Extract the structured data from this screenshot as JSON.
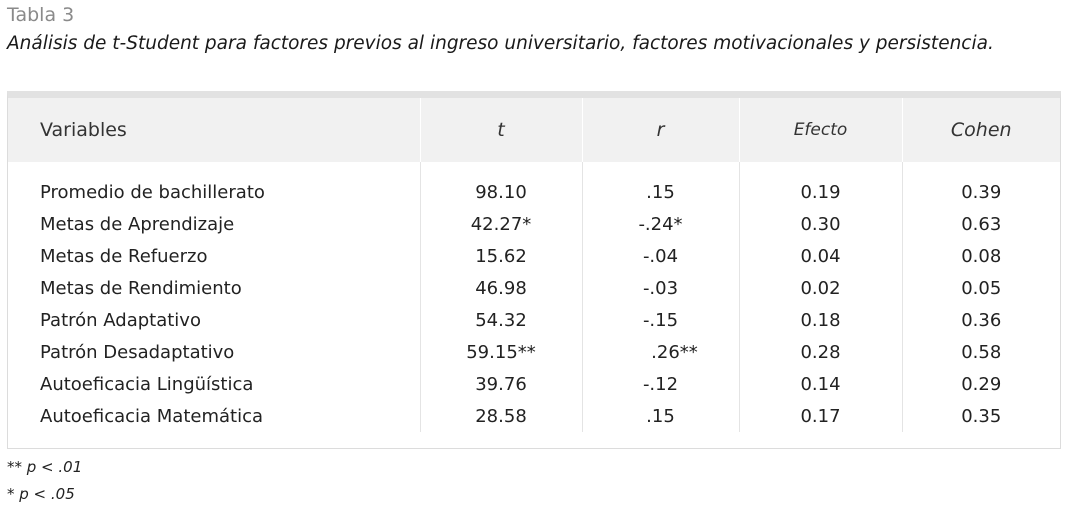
{
  "table_label": "Tabla 3",
  "caption": "Análisis de t-Student para factores previos al ingreso universitario, factores motivacionales y persistencia.",
  "headers": [
    "Variables",
    "t",
    "r",
    "Efecto",
    "Cohen"
  ],
  "rows": [
    {
      "variable": "Promedio de bachillerato",
      "t": "98.10",
      "r": ".15",
      "efecto": "0.19",
      "cohen": "0.39"
    },
    {
      "variable": "Metas de Aprendizaje",
      "t": "42.27*",
      "r": "-.24*",
      "efecto": "0.30",
      "cohen": "0.63"
    },
    {
      "variable": "Metas de Refuerzo",
      "t": "15.62",
      "r": "-.04",
      "efecto": "0.04",
      "cohen": "0.08"
    },
    {
      "variable": "Metas de Rendimiento",
      "t": "46.98",
      "r": "-.03",
      "efecto": "0.02",
      "cohen": "0.05"
    },
    {
      "variable": "Patrón Adaptativo",
      "t": "54.32",
      "r": "-.15",
      "efecto": "0.18",
      "cohen": "0.36"
    },
    {
      "variable": "Patrón Desadaptativo",
      "t": "59.15**",
      "r": ".26**",
      "efecto": "0.28",
      "cohen": "0.58"
    },
    {
      "variable": "Autoeficacia Lingüística",
      "t": "39.76",
      "r": "-.12",
      "efecto": "0.14",
      "cohen": "0.29"
    },
    {
      "variable": "Autoeficacia Matemática",
      "t": "28.58",
      "r": ".15",
      "efecto": "0.17",
      "cohen": "0.35"
    }
  ],
  "notes": [
    "** p < .01",
    "* p < .05"
  ]
}
